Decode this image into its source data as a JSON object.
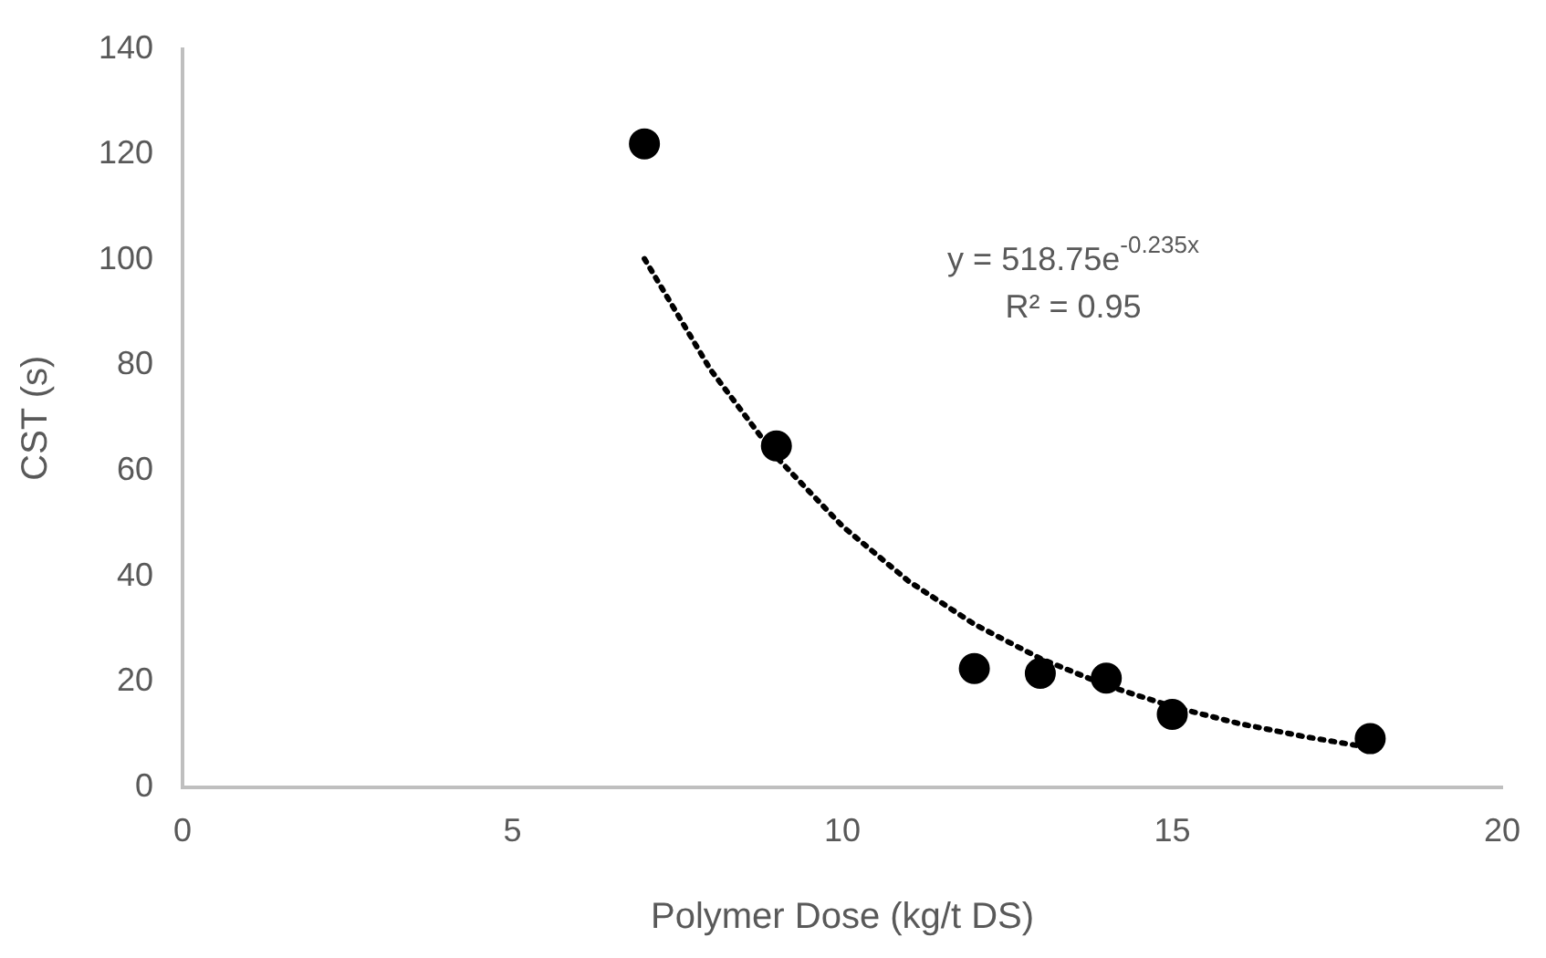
{
  "chart_data": {
    "type": "scatter",
    "xlabel": "Polymer Dose (kg/t DS)",
    "ylabel": "CST (s)",
    "xlim": [
      0,
      20
    ],
    "xticks": [
      0,
      5,
      10,
      15,
      20
    ],
    "ylim": [
      0,
      140
    ],
    "yticks": [
      0,
      20,
      40,
      60,
      80,
      100,
      120,
      140
    ],
    "grid": false,
    "legend": false,
    "series": [
      {
        "type": "scatter",
        "color": "#000000",
        "marker": "circle",
        "x": [
          7,
          9,
          12,
          13,
          14,
          15,
          18
        ],
        "values": [
          122,
          64.7,
          22.5,
          21.6,
          20.7,
          13.8,
          9.2
        ]
      },
      {
        "type": "line",
        "color": "#000000",
        "marker": "none",
        "line_style": "dotted",
        "x": [
          7,
          8,
          9,
          10,
          11,
          12,
          13,
          14,
          15,
          16,
          17,
          18
        ],
        "values": [
          100.2,
          79.2,
          62.6,
          49.5,
          39.1,
          30.9,
          24.4,
          19.3,
          15.3,
          12.1,
          9.6,
          7.5
        ]
      }
    ],
    "annotations": [
      "y = 518.75e$^{-0.235x}$",
      "R² = 0.95"
    ]
  }
}
